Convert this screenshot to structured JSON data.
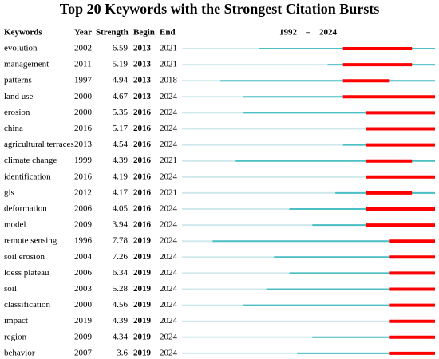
{
  "header": {
    "title": "Top 20 Keywords with the Strongest Citation Bursts",
    "columns": [
      "Keywords",
      "Year",
      "Strength",
      "Begin",
      "End"
    ],
    "timeline_start": 1992,
    "timeline_end": 2024
  },
  "table": {
    "rows": [
      {
        "keyword": "evolution",
        "year": 2002,
        "strength": 6.59,
        "begin": 2013,
        "end": 2021
      },
      {
        "keyword": "management",
        "year": 2011,
        "strength": 5.19,
        "begin": 2013,
        "end": 2021
      },
      {
        "keyword": "patterns",
        "year": 1997,
        "strength": 4.94,
        "begin": 2013,
        "end": 2018
      },
      {
        "keyword": "land use",
        "year": 2000,
        "strength": 4.67,
        "begin": 2013,
        "end": 2024
      },
      {
        "keyword": "erosion",
        "year": 2000,
        "strength": 5.35,
        "begin": 2016,
        "end": 2024
      },
      {
        "keyword": "china",
        "year": 2016,
        "strength": 5.17,
        "begin": 2016,
        "end": 2024
      },
      {
        "keyword": "agricultural terraces",
        "year": 2013,
        "strength": 4.54,
        "begin": 2016,
        "end": 2024
      },
      {
        "keyword": "climate change",
        "year": 1999,
        "strength": 4.39,
        "begin": 2016,
        "end": 2021
      },
      {
        "keyword": "identification",
        "year": 2016,
        "strength": 4.19,
        "begin": 2016,
        "end": 2024
      },
      {
        "keyword": "gis",
        "year": 2012,
        "strength": 4.17,
        "begin": 2016,
        "end": 2021
      },
      {
        "keyword": "deformation",
        "year": 2006,
        "strength": 4.05,
        "begin": 2016,
        "end": 2024
      },
      {
        "keyword": "model",
        "year": 2009,
        "strength": 3.94,
        "begin": 2016,
        "end": 2024
      },
      {
        "keyword": "remote sensing",
        "year": 1996,
        "strength": 7.78,
        "begin": 2019,
        "end": 2024
      },
      {
        "keyword": "soil erosion",
        "year": 2004,
        "strength": 7.26,
        "begin": 2019,
        "end": 2024
      },
      {
        "keyword": "loess plateau",
        "year": 2006,
        "strength": 6.34,
        "begin": 2019,
        "end": 2024
      },
      {
        "keyword": "soil",
        "year": 2003,
        "strength": 5.28,
        "begin": 2019,
        "end": 2024
      },
      {
        "keyword": "classification",
        "year": 2000,
        "strength": 4.56,
        "begin": 2019,
        "end": 2024
      },
      {
        "keyword": "impact",
        "year": 2019,
        "strength": 4.39,
        "begin": 2019,
        "end": 2024
      },
      {
        "keyword": "region",
        "year": 2009,
        "strength": 4.34,
        "begin": 2019,
        "end": 2024
      },
      {
        "keyword": "behavior",
        "year": 2007,
        "strength": 3.6,
        "begin": 2019,
        "end": 2024
      }
    ]
  }
}
